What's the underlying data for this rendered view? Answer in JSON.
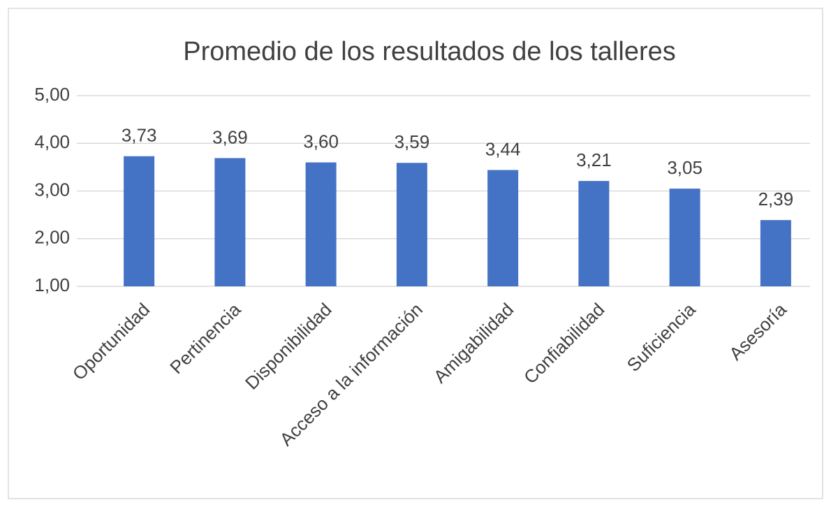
{
  "chart_data": {
    "type": "bar",
    "title": "Promedio de los resultados de los talleres",
    "categories": [
      "Oportunidad",
      "Pertinencia",
      "Disponibilidad",
      "Acceso a la información",
      "Amigabilidad",
      "Confiabilidad",
      "Suficiencia",
      "Asesoría"
    ],
    "values": [
      3.73,
      3.69,
      3.6,
      3.59,
      3.44,
      3.21,
      3.05,
      2.39
    ],
    "value_labels": [
      "3,73",
      "3,69",
      "3,60",
      "3,59",
      "3,44",
      "3,21",
      "3,05",
      "2,39"
    ],
    "color": "#4472c4",
    "ylim": [
      1,
      5
    ],
    "yticks": [
      {
        "value": 1,
        "label": "1,00"
      },
      {
        "value": 2,
        "label": "2,00"
      },
      {
        "value": 3,
        "label": "3,00"
      },
      {
        "value": 4,
        "label": "4,00"
      },
      {
        "value": 5,
        "label": "5,00"
      }
    ],
    "grid": true
  }
}
